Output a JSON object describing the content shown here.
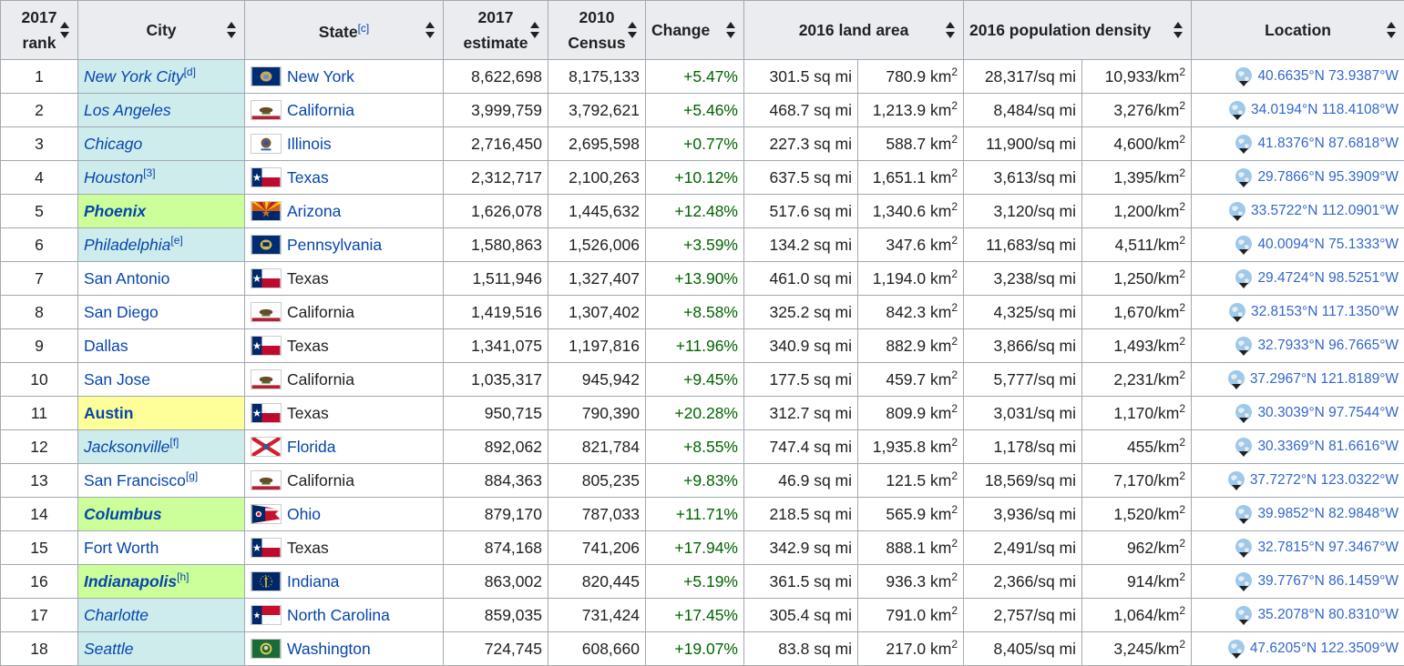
{
  "headers": {
    "rank": "2017 rank",
    "city": "City",
    "state": "State",
    "state_note": "[c]",
    "estimate": "2017 estimate",
    "census": "2010 Census",
    "change": "Change",
    "land_area": "2016 land area",
    "density": "2016 population density",
    "location": "Location"
  },
  "colors": {
    "link": "#0645ad",
    "change_text": "#006400",
    "header_bg": "#eaecf0",
    "city_blue": "#cfecec",
    "city_green": "#ccff99",
    "city_yellow": "#ffff99"
  },
  "rows": [
    {
      "rank": "1",
      "city": "New York City",
      "note": "[d]",
      "style": "italic",
      "bg": "blue",
      "state": "New York",
      "flag": "new-york",
      "state_link": true,
      "estimate": "8,622,698",
      "census": "8,175,133",
      "change": "+5.47%",
      "area_mi": "301.5 sq mi",
      "area_km": "780.9 km",
      "dens_mi": "28,317/sq mi",
      "dens_km": "10,933/km",
      "loc": "40.6635°N 73.9387°W"
    },
    {
      "rank": "2",
      "city": "Los Angeles",
      "note": "",
      "style": "italic",
      "bg": "blue",
      "state": "California",
      "flag": "california",
      "state_link": true,
      "estimate": "3,999,759",
      "census": "3,792,621",
      "change": "+5.46%",
      "area_mi": "468.7 sq mi",
      "area_km": "1,213.9 km",
      "dens_mi": "8,484/sq mi",
      "dens_km": "3,276/km",
      "loc": "34.0194°N 118.4108°W"
    },
    {
      "rank": "3",
      "city": "Chicago",
      "note": "",
      "style": "italic",
      "bg": "blue",
      "state": "Illinois",
      "flag": "illinois",
      "state_link": true,
      "estimate": "2,716,450",
      "census": "2,695,598",
      "change": "+0.77%",
      "area_mi": "227.3 sq mi",
      "area_km": "588.7 km",
      "dens_mi": "11,900/sq mi",
      "dens_km": "4,600/km",
      "loc": "41.8376°N 87.6818°W"
    },
    {
      "rank": "4",
      "city": "Houston",
      "note": "[3]",
      "style": "italic",
      "bg": "blue",
      "state": "Texas",
      "flag": "texas",
      "state_link": true,
      "estimate": "2,312,717",
      "census": "2,100,263",
      "change": "+10.12%",
      "area_mi": "637.5 sq mi",
      "area_km": "1,651.1 km",
      "dens_mi": "3,613/sq mi",
      "dens_km": "1,395/km",
      "loc": "29.7866°N 95.3909°W"
    },
    {
      "rank": "5",
      "city": "Phoenix",
      "note": "",
      "style": "bold-italic",
      "bg": "green",
      "state": "Arizona",
      "flag": "arizona",
      "state_link": true,
      "estimate": "1,626,078",
      "census": "1,445,632",
      "change": "+12.48%",
      "area_mi": "517.6 sq mi",
      "area_km": "1,340.6 km",
      "dens_mi": "3,120/sq mi",
      "dens_km": "1,200/km",
      "loc": "33.5722°N 112.0901°W"
    },
    {
      "rank": "6",
      "city": "Philadelphia",
      "note": "[e]",
      "style": "italic",
      "bg": "blue",
      "state": "Pennsylvania",
      "flag": "pennsylvania",
      "state_link": true,
      "estimate": "1,580,863",
      "census": "1,526,006",
      "change": "+3.59%",
      "area_mi": "134.2 sq mi",
      "area_km": "347.6 km",
      "dens_mi": "11,683/sq mi",
      "dens_km": "4,511/km",
      "loc": "40.0094°N 75.1333°W"
    },
    {
      "rank": "7",
      "city": "San Antonio",
      "note": "",
      "style": "normal",
      "bg": "none",
      "state": "Texas",
      "flag": "texas",
      "state_link": false,
      "estimate": "1,511,946",
      "census": "1,327,407",
      "change": "+13.90%",
      "area_mi": "461.0 sq mi",
      "area_km": "1,194.0 km",
      "dens_mi": "3,238/sq mi",
      "dens_km": "1,250/km",
      "loc": "29.4724°N 98.5251°W"
    },
    {
      "rank": "8",
      "city": "San Diego",
      "note": "",
      "style": "normal",
      "bg": "none",
      "state": "California",
      "flag": "california",
      "state_link": false,
      "estimate": "1,419,516",
      "census": "1,307,402",
      "change": "+8.58%",
      "area_mi": "325.2 sq mi",
      "area_km": "842.3 km",
      "dens_mi": "4,325/sq mi",
      "dens_km": "1,670/km",
      "loc": "32.8153°N 117.1350°W"
    },
    {
      "rank": "9",
      "city": "Dallas",
      "note": "",
      "style": "normal",
      "bg": "none",
      "state": "Texas",
      "flag": "texas",
      "state_link": false,
      "estimate": "1,341,075",
      "census": "1,197,816",
      "change": "+11.96%",
      "area_mi": "340.9 sq mi",
      "area_km": "882.9 km",
      "dens_mi": "3,866/sq mi",
      "dens_km": "1,493/km",
      "loc": "32.7933°N 96.7665°W"
    },
    {
      "rank": "10",
      "city": "San Jose",
      "note": "",
      "style": "normal",
      "bg": "none",
      "state": "California",
      "flag": "california",
      "state_link": false,
      "estimate": "1,035,317",
      "census": "945,942",
      "change": "+9.45%",
      "area_mi": "177.5 sq mi",
      "area_km": "459.7 km",
      "dens_mi": "5,777/sq mi",
      "dens_km": "2,231/km",
      "loc": "37.2967°N 121.8189°W"
    },
    {
      "rank": "11",
      "city": "Austin",
      "note": "",
      "style": "bold",
      "bg": "yellow",
      "state": "Texas",
      "flag": "texas",
      "state_link": false,
      "estimate": "950,715",
      "census": "790,390",
      "change": "+20.28%",
      "area_mi": "312.7 sq mi",
      "area_km": "809.9 km",
      "dens_mi": "3,031/sq mi",
      "dens_km": "1,170/km",
      "loc": "30.3039°N 97.7544°W"
    },
    {
      "rank": "12",
      "city": "Jacksonville",
      "note": "[f]",
      "style": "italic",
      "bg": "blue",
      "state": "Florida",
      "flag": "florida",
      "state_link": true,
      "estimate": "892,062",
      "census": "821,784",
      "change": "+8.55%",
      "area_mi": "747.4 sq mi",
      "area_km": "1,935.8 km",
      "dens_mi": "1,178/sq mi",
      "dens_km": "455/km",
      "loc": "30.3369°N 81.6616°W"
    },
    {
      "rank": "13",
      "city": "San Francisco",
      "note": "[g]",
      "style": "normal",
      "bg": "none",
      "state": "California",
      "flag": "california",
      "state_link": false,
      "estimate": "884,363",
      "census": "805,235",
      "change": "+9.83%",
      "area_mi": "46.9 sq mi",
      "area_km": "121.5 km",
      "dens_mi": "18,569/sq mi",
      "dens_km": "7,170/km",
      "loc": "37.7272°N 123.0322°W"
    },
    {
      "rank": "14",
      "city": "Columbus",
      "note": "",
      "style": "bold-italic",
      "bg": "green",
      "state": "Ohio",
      "flag": "ohio",
      "state_link": true,
      "estimate": "879,170",
      "census": "787,033",
      "change": "+11.71%",
      "area_mi": "218.5 sq mi",
      "area_km": "565.9 km",
      "dens_mi": "3,936/sq mi",
      "dens_km": "1,520/km",
      "loc": "39.9852°N 82.9848°W"
    },
    {
      "rank": "15",
      "city": "Fort Worth",
      "note": "",
      "style": "normal",
      "bg": "none",
      "state": "Texas",
      "flag": "texas",
      "state_link": false,
      "estimate": "874,168",
      "census": "741,206",
      "change": "+17.94%",
      "area_mi": "342.9 sq mi",
      "area_km": "888.1 km",
      "dens_mi": "2,491/sq mi",
      "dens_km": "962/km",
      "loc": "32.7815°N 97.3467°W"
    },
    {
      "rank": "16",
      "city": "Indianapolis",
      "note": "[h]",
      "style": "bold-italic",
      "bg": "green",
      "state": "Indiana",
      "flag": "indiana",
      "state_link": true,
      "estimate": "863,002",
      "census": "820,445",
      "change": "+5.19%",
      "area_mi": "361.5 sq mi",
      "area_km": "936.3 km",
      "dens_mi": "2,366/sq mi",
      "dens_km": "914/km",
      "loc": "39.7767°N 86.1459°W"
    },
    {
      "rank": "17",
      "city": "Charlotte",
      "note": "",
      "style": "italic",
      "bg": "blue",
      "state": "North Carolina",
      "flag": "north-carolina",
      "state_link": true,
      "estimate": "859,035",
      "census": "731,424",
      "change": "+17.45%",
      "area_mi": "305.4 sq mi",
      "area_km": "791.0 km",
      "dens_mi": "2,757/sq mi",
      "dens_km": "1,064/km",
      "loc": "35.2078°N 80.8310°W"
    },
    {
      "rank": "18",
      "city": "Seattle",
      "note": "",
      "style": "italic",
      "bg": "blue",
      "state": "Washington",
      "flag": "washington",
      "state_link": true,
      "estimate": "724,745",
      "census": "608,660",
      "change": "+19.07%",
      "area_mi": "83.8 sq mi",
      "area_km": "217.0 km",
      "dens_mi": "8,405/sq mi",
      "dens_km": "3,245/km",
      "loc": "47.6205°N 122.3509°W"
    }
  ]
}
